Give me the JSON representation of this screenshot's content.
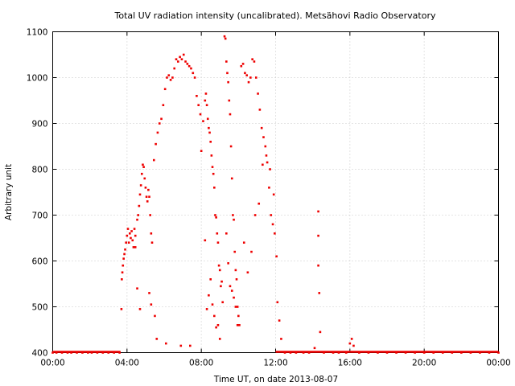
{
  "chart_data": {
    "type": "scatter",
    "title": "Total UV radiation intensity (uncalibrated). Metsähovi Radio Observatory",
    "xlabel": "Time UT, on date 2013-08-07",
    "ylabel": "Arbitrary unit",
    "xlim": [
      0,
      24
    ],
    "ylim": [
      400,
      1100
    ],
    "x_ticks": [
      0,
      4,
      8,
      12,
      16,
      20,
      24
    ],
    "x_tick_labels": [
      "00:00",
      "04:00",
      "08:00",
      "12:00",
      "16:00",
      "20:00",
      "00:00"
    ],
    "y_ticks": [
      400,
      500,
      600,
      700,
      800,
      900,
      1000,
      1100
    ],
    "y_tick_labels": [
      "400",
      "500",
      "600",
      "700",
      "800",
      "900",
      "1000",
      "1100"
    ],
    "grid": true,
    "marker_color": "#ee0000",
    "series": [
      {
        "x": [
          0.0,
          0.2,
          0.5,
          0.8,
          1.0,
          1.3,
          1.6,
          1.9,
          2.1,
          2.4,
          2.7,
          3.0,
          3.3,
          3.6,
          3.7,
          3.72,
          3.75,
          3.78,
          3.82,
          3.86,
          3.9,
          3.95,
          4.0,
          4.05,
          4.1,
          4.15,
          4.2,
          4.25,
          4.3,
          4.35,
          4.4,
          4.45,
          4.55,
          4.6,
          4.65,
          4.7,
          4.75,
          4.8,
          4.85,
          4.9,
          4.95,
          5.0,
          5.05,
          5.1,
          5.15,
          5.2,
          5.25,
          5.3,
          5.35,
          5.45,
          5.55,
          5.65,
          5.75,
          5.85,
          5.95,
          6.05,
          6.15,
          6.25,
          6.35,
          6.45,
          6.55,
          6.65,
          6.75,
          6.85,
          6.95,
          7.05,
          7.15,
          7.25,
          7.35,
          7.45,
          7.55,
          7.65,
          7.75,
          7.85,
          7.95,
          4.45,
          4.55,
          4.7,
          5.2,
          5.3,
          5.5,
          5.6,
          6.1,
          6.9,
          7.4,
          8.0,
          8.1,
          8.2,
          8.25,
          8.3,
          8.35,
          8.4,
          8.45,
          8.5,
          8.55,
          8.6,
          8.65,
          8.7,
          8.75,
          8.8,
          8.85,
          8.9,
          8.95,
          9.0,
          9.05,
          9.1,
          9.15,
          8.2,
          8.3,
          8.4,
          8.5,
          8.6,
          8.7,
          8.8,
          8.9,
          9.0,
          9.25,
          9.3,
          9.35,
          9.4,
          9.45,
          9.5,
          9.55,
          9.6,
          9.65,
          9.7,
          9.75,
          9.8,
          9.85,
          9.9,
          9.95,
          10.0,
          10.05,
          9.35,
          9.45,
          9.55,
          9.65,
          9.75,
          9.85,
          9.95,
          10.15,
          10.25,
          10.35,
          10.45,
          10.55,
          10.65,
          10.75,
          10.85,
          10.95,
          11.05,
          11.15,
          11.25,
          11.35,
          11.45,
          11.55,
          11.65,
          11.75,
          11.85,
          11.95,
          12.05,
          10.3,
          10.5,
          10.7,
          10.9,
          11.1,
          11.3,
          11.5,
          11.7,
          11.9,
          12.1,
          12.2,
          12.3,
          12.5,
          12.8,
          13.1,
          13.5,
          13.8,
          14.1,
          14.3,
          14.3,
          14.3,
          14.35,
          14.4,
          14.6,
          15.1,
          15.4,
          15.8,
          16.0,
          16.1,
          16.2,
          16.5,
          17.0,
          17.5,
          18.0,
          18.5,
          19.0,
          19.5,
          20.0,
          20.5,
          21.0,
          21.5,
          22.0,
          22.5,
          23.0,
          23.5,
          24.0
        ],
        "y": [
          400,
          400,
          400,
          400,
          400,
          400,
          400,
          400,
          400,
          400,
          400,
          400,
          400,
          400,
          495,
          560,
          575,
          590,
          605,
          615,
          625,
          640,
          655,
          670,
          640,
          660,
          650,
          665,
          645,
          630,
          670,
          655,
          690,
          700,
          720,
          745,
          765,
          790,
          810,
          805,
          780,
          760,
          740,
          730,
          755,
          740,
          700,
          660,
          640,
          820,
          855,
          880,
          900,
          910,
          940,
          975,
          1000,
          1005,
          995,
          1000,
          1020,
          1040,
          1035,
          1045,
          1040,
          1050,
          1035,
          1030,
          1025,
          1020,
          1010,
          1000,
          960,
          940,
          920,
          630,
          540,
          495,
          530,
          505,
          480,
          430,
          420,
          415,
          415,
          840,
          905,
          950,
          965,
          940,
          910,
          890,
          880,
          860,
          830,
          805,
          790,
          760,
          700,
          695,
          660,
          640,
          590,
          580,
          545,
          555,
          510,
          645,
          495,
          525,
          560,
          505,
          480,
          455,
          460,
          430,
          1090,
          1085,
          1035,
          1010,
          990,
          950,
          920,
          850,
          780,
          700,
          690,
          620,
          580,
          560,
          500,
          480,
          460,
          660,
          595,
          545,
          535,
          520,
          500,
          460,
          1025,
          1030,
          1010,
          1005,
          990,
          1000,
          1040,
          1035,
          1000,
          965,
          930,
          890,
          870,
          850,
          815,
          760,
          700,
          680,
          660,
          610,
          640,
          575,
          620,
          700,
          725,
          810,
          830,
          800,
          745,
          510,
          470,
          430,
          400,
          400,
          400,
          400,
          400,
          410,
          708,
          655,
          590,
          530,
          445,
          400,
          400,
          400,
          400,
          420,
          430,
          415,
          400,
          400,
          400,
          400,
          400,
          400,
          400,
          400,
          400,
          400,
          400,
          400,
          400,
          400,
          400,
          400
        ]
      }
    ]
  }
}
